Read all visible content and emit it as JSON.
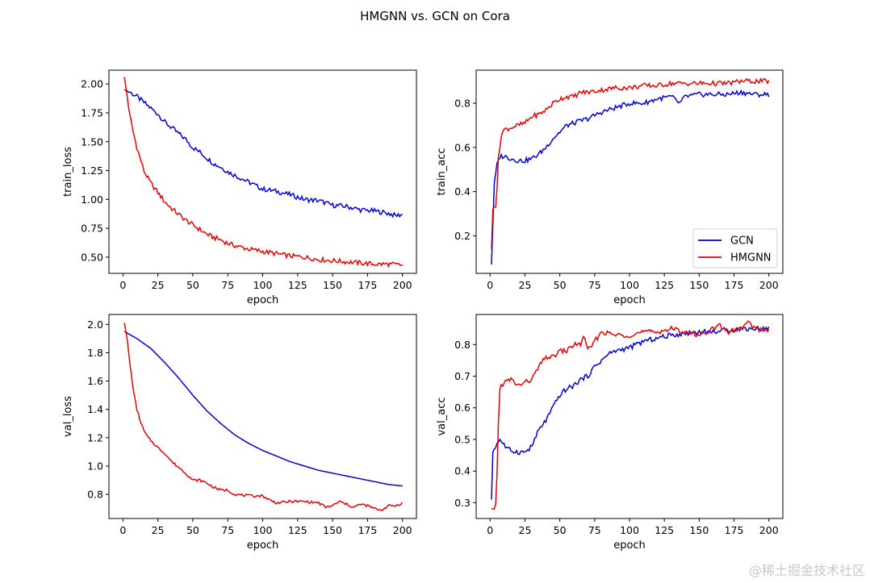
{
  "figure_title": "HMGNN vs. GCN on Cora",
  "watermark": "@稀土掘金技术社区",
  "colors": {
    "GCN": "#0000dd",
    "HMGNN": "#ee0000"
  },
  "chart_data": [
    {
      "type": "line",
      "id": "train_loss",
      "title": "",
      "xlabel": "epoch",
      "ylabel": "train_loss",
      "xlim": [
        -10,
        210
      ],
      "ylim": [
        0.36,
        2.12
      ],
      "xticks": [
        0,
        25,
        50,
        75,
        100,
        125,
        150,
        175,
        200
      ],
      "xtick_labels": [
        "0",
        "25",
        "50",
        "75",
        "100",
        "125",
        "150",
        "175",
        "200"
      ],
      "yticks": [
        0.5,
        0.75,
        1.0,
        1.25,
        1.5,
        1.75,
        2.0
      ],
      "ytick_labels": [
        "0.50",
        "0.75",
        "1.00",
        "1.25",
        "1.50",
        "1.75",
        "2.00"
      ],
      "grid": false,
      "legend": null,
      "series": [
        {
          "name": "GCN",
          "x": [
            1,
            5,
            10,
            15,
            20,
            25,
            30,
            35,
            40,
            45,
            50,
            55,
            60,
            65,
            70,
            75,
            80,
            85,
            90,
            95,
            100,
            110,
            120,
            130,
            140,
            150,
            160,
            170,
            180,
            190,
            195,
            200
          ],
          "y": [
            1.95,
            1.93,
            1.89,
            1.84,
            1.79,
            1.74,
            1.67,
            1.62,
            1.57,
            1.52,
            1.45,
            1.41,
            1.36,
            1.31,
            1.28,
            1.24,
            1.21,
            1.18,
            1.15,
            1.12,
            1.09,
            1.07,
            1.04,
            1.0,
            0.99,
            0.95,
            0.94,
            0.91,
            0.9,
            0.88,
            0.86,
            0.87
          ]
        },
        {
          "name": "HMGNN",
          "x": [
            1,
            3,
            5,
            8,
            10,
            13,
            15,
            18,
            20,
            25,
            30,
            35,
            40,
            45,
            50,
            55,
            60,
            65,
            70,
            75,
            80,
            90,
            100,
            110,
            120,
            130,
            140,
            150,
            160,
            170,
            180,
            190,
            200
          ],
          "y": [
            2.06,
            1.9,
            1.72,
            1.55,
            1.45,
            1.33,
            1.25,
            1.18,
            1.14,
            1.06,
            0.98,
            0.92,
            0.87,
            0.82,
            0.78,
            0.74,
            0.7,
            0.67,
            0.65,
            0.62,
            0.6,
            0.57,
            0.55,
            0.53,
            0.51,
            0.5,
            0.48,
            0.47,
            0.46,
            0.45,
            0.44,
            0.44,
            0.43
          ]
        }
      ]
    },
    {
      "type": "line",
      "id": "train_acc",
      "title": "",
      "xlabel": "epoch",
      "ylabel": "train_acc",
      "xlim": [
        -10,
        210
      ],
      "ylim": [
        0.03,
        0.95
      ],
      "xticks": [
        0,
        25,
        50,
        75,
        100,
        125,
        150,
        175,
        200
      ],
      "xtick_labels": [
        "0",
        "25",
        "50",
        "75",
        "100",
        "125",
        "150",
        "175",
        "200"
      ],
      "yticks": [
        0.2,
        0.4,
        0.6,
        0.8
      ],
      "ytick_labels": [
        "0.2",
        "0.4",
        "0.6",
        "0.8"
      ],
      "grid": false,
      "legend": {
        "placement": "lower-right",
        "entries": [
          "GCN",
          "HMGNN"
        ]
      },
      "series": [
        {
          "name": "GCN",
          "x": [
            1,
            2,
            3,
            5,
            7,
            10,
            15,
            20,
            25,
            30,
            35,
            40,
            45,
            50,
            55,
            60,
            70,
            80,
            90,
            100,
            110,
            120,
            130,
            136,
            140,
            150,
            160,
            170,
            180,
            190,
            200
          ],
          "y": [
            0.07,
            0.25,
            0.44,
            0.52,
            0.56,
            0.56,
            0.55,
            0.54,
            0.54,
            0.55,
            0.57,
            0.6,
            0.64,
            0.67,
            0.7,
            0.71,
            0.73,
            0.76,
            0.78,
            0.8,
            0.8,
            0.82,
            0.83,
            0.8,
            0.83,
            0.84,
            0.84,
            0.84,
            0.85,
            0.84,
            0.84
          ]
        },
        {
          "name": "HMGNN",
          "x": [
            1,
            2,
            3,
            4,
            5,
            6,
            7,
            8,
            10,
            15,
            20,
            25,
            30,
            35,
            40,
            45,
            50,
            55,
            60,
            65,
            70,
            80,
            90,
            100,
            110,
            120,
            130,
            140,
            150,
            160,
            170,
            180,
            190,
            200
          ],
          "y": [
            0.14,
            0.32,
            0.33,
            0.34,
            0.42,
            0.55,
            0.6,
            0.66,
            0.68,
            0.69,
            0.7,
            0.71,
            0.74,
            0.75,
            0.77,
            0.8,
            0.82,
            0.83,
            0.83,
            0.85,
            0.85,
            0.86,
            0.87,
            0.87,
            0.88,
            0.88,
            0.89,
            0.89,
            0.89,
            0.89,
            0.89,
            0.9,
            0.9,
            0.9
          ]
        }
      ]
    },
    {
      "type": "line",
      "id": "val_loss",
      "title": "",
      "xlabel": "epoch",
      "ylabel": "val_loss",
      "xlim": [
        -10,
        210
      ],
      "ylim": [
        0.63,
        2.07
      ],
      "xticks": [
        0,
        25,
        50,
        75,
        100,
        125,
        150,
        175,
        200
      ],
      "xtick_labels": [
        "0",
        "25",
        "50",
        "75",
        "100",
        "125",
        "150",
        "175",
        "200"
      ],
      "yticks": [
        0.8,
        1.0,
        1.2,
        1.4,
        1.6,
        1.8,
        2.0
      ],
      "ytick_labels": [
        "0.8",
        "1.0",
        "1.2",
        "1.4",
        "1.6",
        "1.8",
        "2.0"
      ],
      "grid": false,
      "legend": null,
      "series": [
        {
          "name": "GCN",
          "x": [
            1,
            10,
            20,
            30,
            40,
            50,
            60,
            70,
            80,
            90,
            100,
            110,
            120,
            130,
            140,
            150,
            160,
            170,
            180,
            190,
            200
          ],
          "y": [
            1.95,
            1.9,
            1.83,
            1.73,
            1.62,
            1.5,
            1.39,
            1.3,
            1.22,
            1.16,
            1.11,
            1.07,
            1.03,
            1.0,
            0.97,
            0.95,
            0.93,
            0.91,
            0.89,
            0.87,
            0.86
          ]
        },
        {
          "name": "HMGNN",
          "x": [
            1,
            3,
            5,
            8,
            10,
            13,
            15,
            18,
            20,
            25,
            30,
            35,
            40,
            45,
            50,
            55,
            60,
            65,
            70,
            75,
            80,
            90,
            100,
            105,
            110,
            120,
            130,
            140,
            145,
            150,
            155,
            160,
            165,
            170,
            175,
            180,
            185,
            190,
            195,
            200
          ],
          "y": [
            2.01,
            1.9,
            1.72,
            1.5,
            1.4,
            1.3,
            1.25,
            1.2,
            1.18,
            1.13,
            1.09,
            1.03,
            0.99,
            0.95,
            0.9,
            0.9,
            0.88,
            0.85,
            0.83,
            0.83,
            0.8,
            0.79,
            0.79,
            0.76,
            0.74,
            0.75,
            0.75,
            0.74,
            0.71,
            0.72,
            0.75,
            0.73,
            0.71,
            0.73,
            0.72,
            0.7,
            0.69,
            0.72,
            0.72,
            0.74
          ]
        }
      ]
    },
    {
      "type": "line",
      "id": "val_acc",
      "title": "",
      "xlabel": "epoch",
      "ylabel": "val_acc",
      "xlim": [
        -10,
        210
      ],
      "ylim": [
        0.25,
        0.895
      ],
      "xticks": [
        0,
        25,
        50,
        75,
        100,
        125,
        150,
        175,
        200
      ],
      "xtick_labels": [
        "0",
        "25",
        "50",
        "75",
        "100",
        "125",
        "150",
        "175",
        "200"
      ],
      "yticks": [
        0.3,
        0.4,
        0.5,
        0.6,
        0.7,
        0.8
      ],
      "ytick_labels": [
        "0.3",
        "0.4",
        "0.5",
        "0.6",
        "0.7",
        "0.8"
      ],
      "grid": false,
      "legend": null,
      "series": [
        {
          "name": "GCN",
          "x": [
            1,
            2,
            4,
            7,
            9,
            12,
            15,
            20,
            25,
            28,
            30,
            35,
            40,
            45,
            50,
            55,
            60,
            65,
            70,
            75,
            80,
            85,
            90,
            100,
            110,
            120,
            130,
            140,
            150,
            160,
            170,
            180,
            190,
            200
          ],
          "y": [
            0.31,
            0.46,
            0.48,
            0.5,
            0.49,
            0.47,
            0.465,
            0.46,
            0.46,
            0.47,
            0.48,
            0.53,
            0.56,
            0.6,
            0.64,
            0.66,
            0.67,
            0.69,
            0.7,
            0.73,
            0.75,
            0.77,
            0.78,
            0.79,
            0.81,
            0.82,
            0.83,
            0.835,
            0.84,
            0.84,
            0.845,
            0.85,
            0.85,
            0.85
          ]
        },
        {
          "name": "HMGNN",
          "x": [
            1,
            3,
            4,
            5,
            6,
            7,
            8,
            10,
            15,
            20,
            25,
            30,
            35,
            40,
            45,
            50,
            55,
            60,
            65,
            67,
            70,
            75,
            80,
            90,
            100,
            110,
            120,
            130,
            140,
            150,
            160,
            165,
            170,
            180,
            185,
            190,
            200
          ],
          "y": [
            0.28,
            0.28,
            0.3,
            0.4,
            0.55,
            0.66,
            0.67,
            0.68,
            0.69,
            0.67,
            0.68,
            0.69,
            0.73,
            0.76,
            0.76,
            0.78,
            0.78,
            0.8,
            0.8,
            0.83,
            0.78,
            0.81,
            0.84,
            0.83,
            0.83,
            0.84,
            0.84,
            0.85,
            0.84,
            0.83,
            0.85,
            0.86,
            0.84,
            0.85,
            0.87,
            0.85,
            0.845
          ]
        }
      ]
    }
  ]
}
